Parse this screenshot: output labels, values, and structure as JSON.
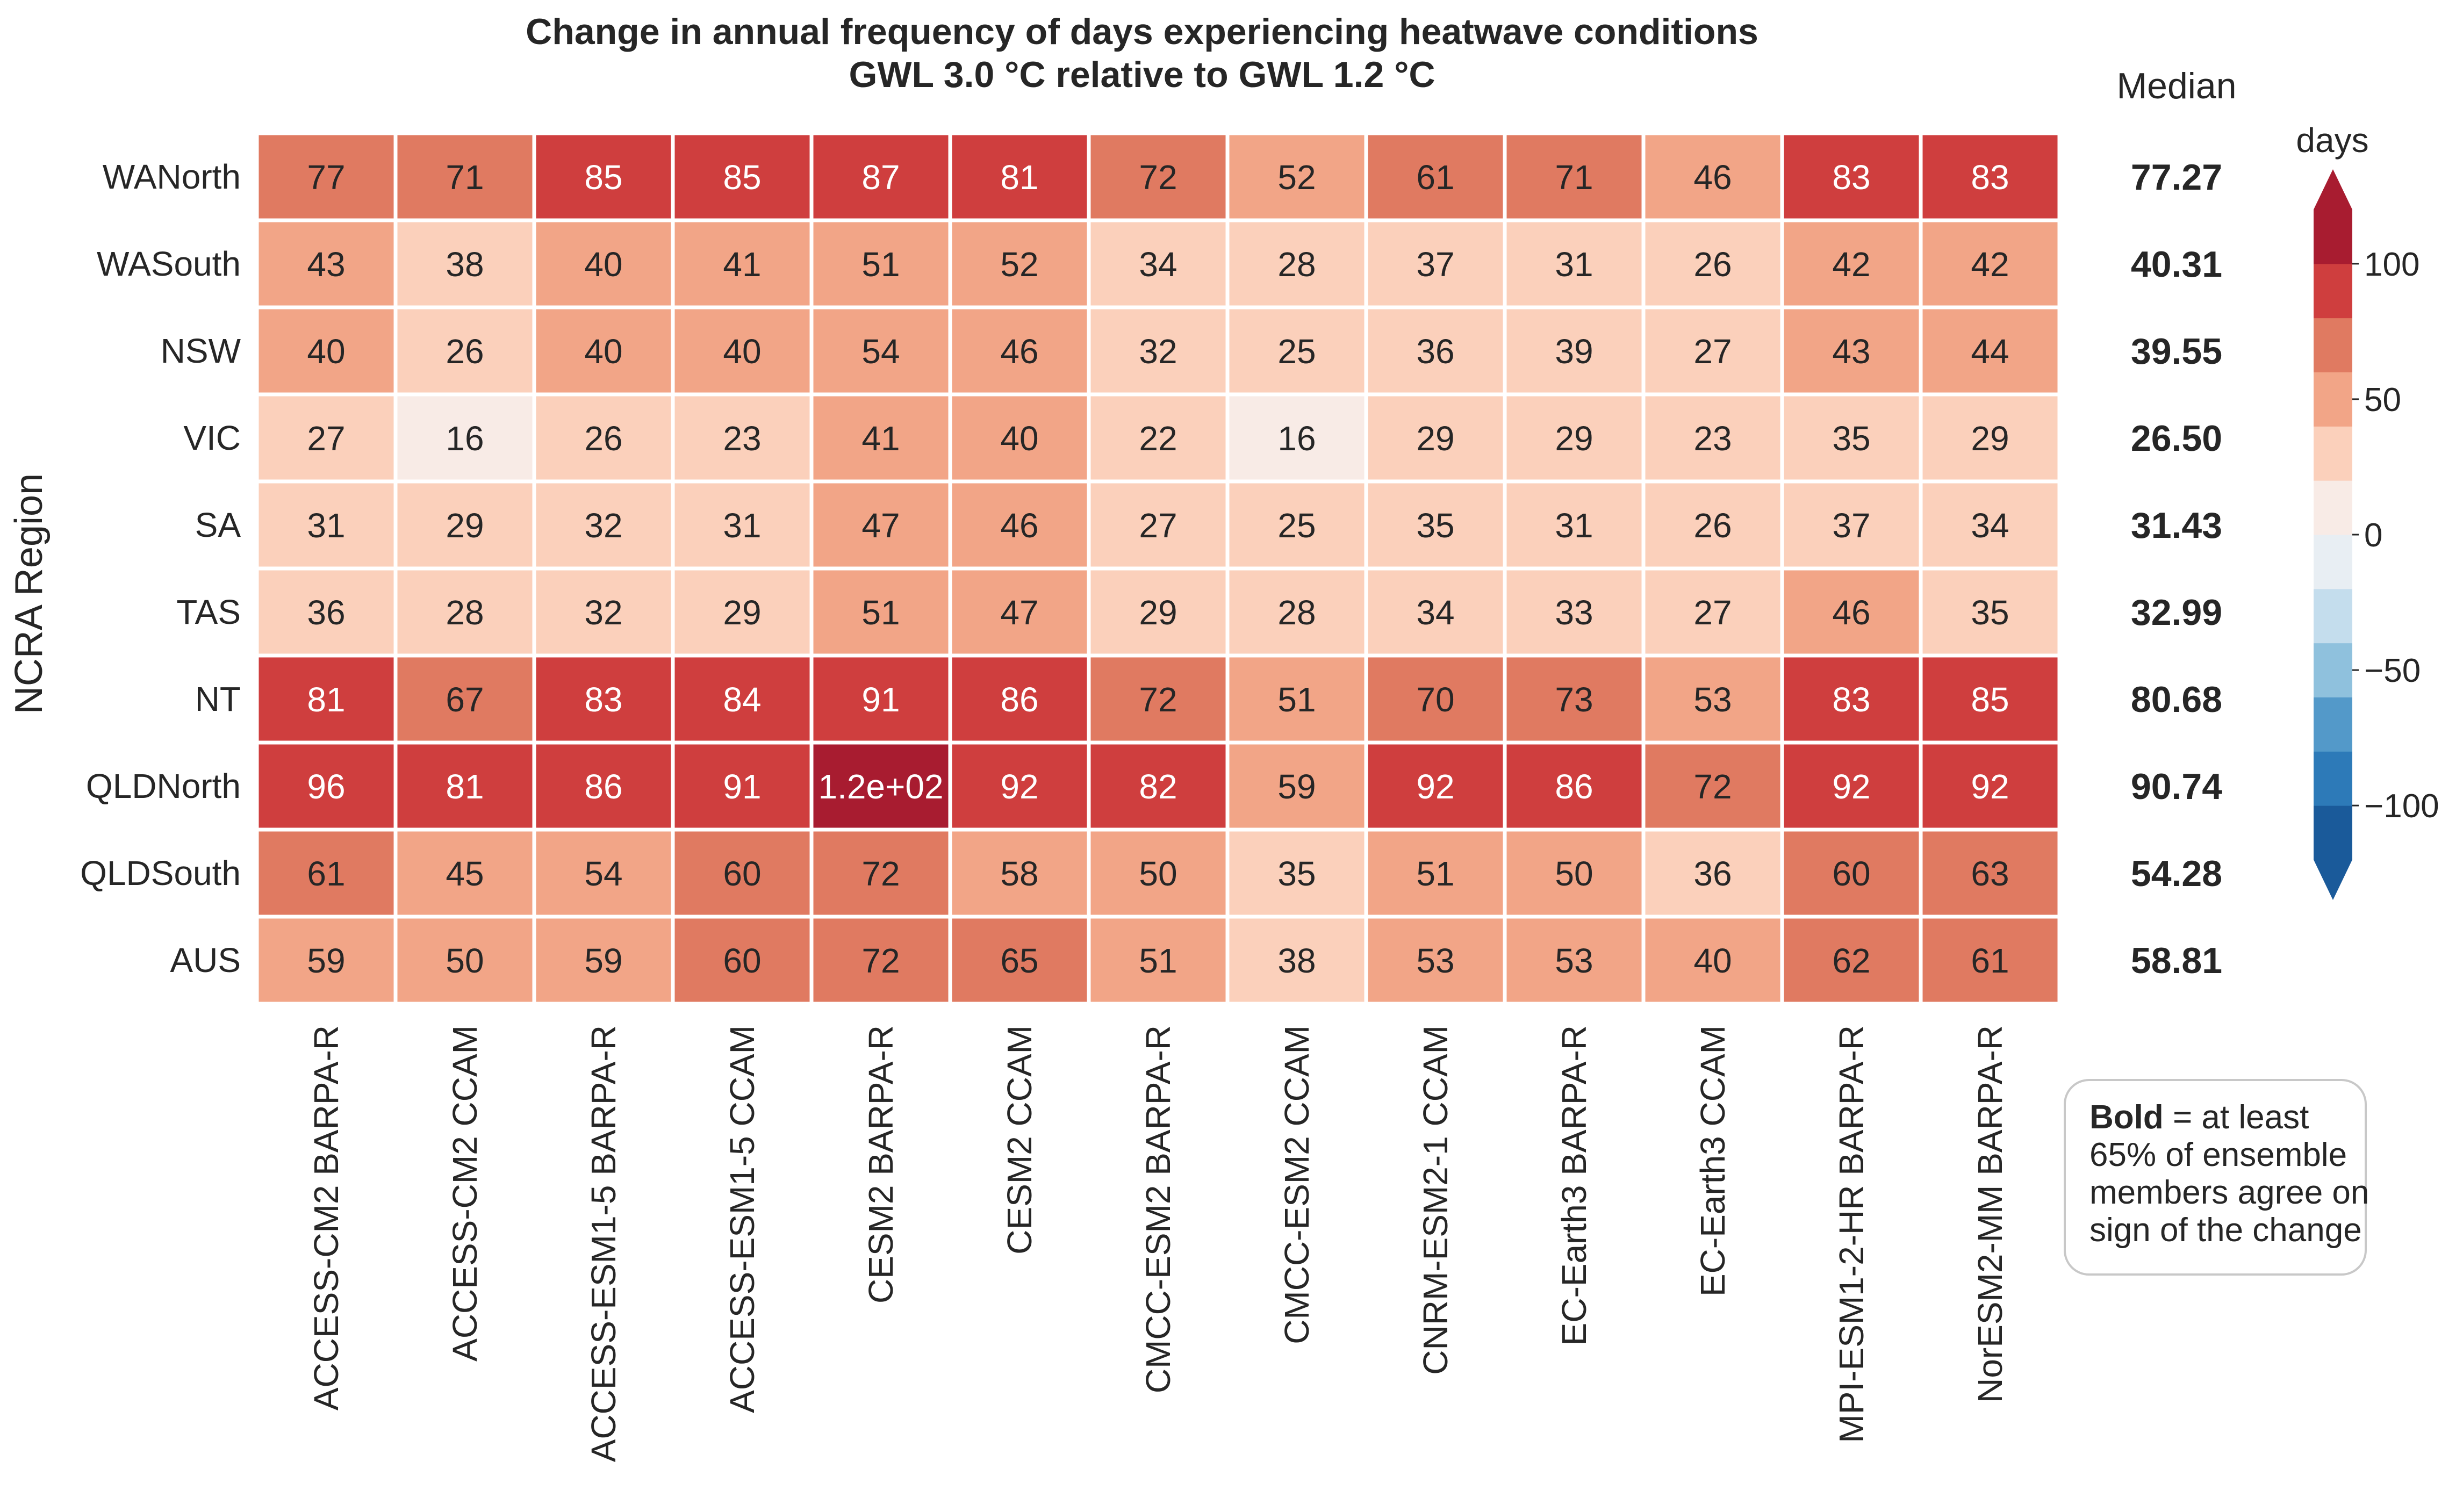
{
  "chart_data": {
    "type": "heatmap",
    "title": "Change in annual frequency of days experiencing heatwave conditions",
    "subtitle": "GWL 3.0 °C relative to GWL 1.2 °C",
    "ylabel": "NCRA Region",
    "rows": [
      "WANorth",
      "WASouth",
      "NSW",
      "VIC",
      "SA",
      "TAS",
      "NT",
      "QLDNorth",
      "QLDSouth",
      "AUS"
    ],
    "columns": [
      "ACCESS-CM2 BARPA-R",
      "ACCESS-CM2 CCAM",
      "ACCESS-ESM1-5 BARPA-R",
      "ACCESS-ESM1-5 CCAM",
      "CESM2 BARPA-R",
      "CESM2 CCAM",
      "CMCC-ESM2 BARPA-R",
      "CMCC-ESM2 CCAM",
      "CNRM-ESM2-1 CCAM",
      "EC-Earth3 BARPA-R",
      "EC-Earth3 CCAM",
      "MPI-ESM1-2-HR BARPA-R",
      "NorESM2-MM BARPA-R"
    ],
    "values": [
      [
        77,
        71,
        85,
        85,
        87,
        81,
        72,
        52,
        61,
        71,
        46,
        83,
        83
      ],
      [
        43,
        38,
        40,
        41,
        51,
        52,
        34,
        28,
        37,
        31,
        26,
        42,
        42
      ],
      [
        40,
        26,
        40,
        40,
        54,
        46,
        32,
        25,
        36,
        39,
        27,
        43,
        44
      ],
      [
        27,
        16,
        26,
        23,
        41,
        40,
        22,
        16,
        29,
        29,
        23,
        35,
        29
      ],
      [
        31,
        29,
        32,
        31,
        47,
        46,
        27,
        25,
        35,
        31,
        26,
        37,
        34
      ],
      [
        36,
        28,
        32,
        29,
        51,
        47,
        29,
        28,
        34,
        33,
        27,
        46,
        35
      ],
      [
        81,
        67,
        83,
        84,
        91,
        86,
        72,
        51,
        70,
        73,
        53,
        83,
        85
      ],
      [
        96,
        81,
        86,
        91,
        120,
        92,
        82,
        59,
        92,
        86,
        72,
        92,
        92
      ],
      [
        61,
        45,
        54,
        60,
        72,
        58,
        50,
        35,
        51,
        50,
        36,
        60,
        63
      ],
      [
        59,
        50,
        59,
        60,
        72,
        65,
        51,
        38,
        53,
        53,
        40,
        62,
        61
      ]
    ],
    "cell_labels": [
      [
        "77",
        "71",
        "85",
        "85",
        "87",
        "81",
        "72",
        "52",
        "61",
        "71",
        "46",
        "83",
        "83"
      ],
      [
        "43",
        "38",
        "40",
        "41",
        "51",
        "52",
        "34",
        "28",
        "37",
        "31",
        "26",
        "42",
        "42"
      ],
      [
        "40",
        "26",
        "40",
        "40",
        "54",
        "46",
        "32",
        "25",
        "36",
        "39",
        "27",
        "43",
        "44"
      ],
      [
        "27",
        "16",
        "26",
        "23",
        "41",
        "40",
        "22",
        "16",
        "29",
        "29",
        "23",
        "35",
        "29"
      ],
      [
        "31",
        "29",
        "32",
        "31",
        "47",
        "46",
        "27",
        "25",
        "35",
        "31",
        "26",
        "37",
        "34"
      ],
      [
        "36",
        "28",
        "32",
        "29",
        "51",
        "47",
        "29",
        "28",
        "34",
        "33",
        "27",
        "46",
        "35"
      ],
      [
        "81",
        "67",
        "83",
        "84",
        "91",
        "86",
        "72",
        "51",
        "70",
        "73",
        "53",
        "83",
        "85"
      ],
      [
        "96",
        "81",
        "86",
        "91",
        "1.2e+02",
        "92",
        "82",
        "59",
        "92",
        "86",
        "72",
        "92",
        "92"
      ],
      [
        "61",
        "45",
        "54",
        "60",
        "72",
        "58",
        "50",
        "35",
        "51",
        "50",
        "36",
        "60",
        "63"
      ],
      [
        "59",
        "50",
        "59",
        "60",
        "72",
        "65",
        "51",
        "38",
        "53",
        "53",
        "40",
        "62",
        "61"
      ]
    ],
    "median_header": "Median",
    "medians": [
      "77.27",
      "40.31",
      "39.55",
      "26.50",
      "31.43",
      "32.99",
      "80.68",
      "90.74",
      "54.28",
      "58.81"
    ],
    "colorbar": {
      "label": "days",
      "boundaries": [
        -120,
        -100,
        -80,
        -60,
        -40,
        -20,
        0,
        20,
        40,
        60,
        80,
        100,
        120
      ],
      "colors": [
        "#1a5a9a",
        "#2d7ab8",
        "#5399c9",
        "#8fc1dd",
        "#c4dded",
        "#e8eef3",
        "#f8ebe6",
        "#fbd0bb",
        "#f2a587",
        "#e07a61",
        "#cf3e3e",
        "#a81c30"
      ],
      "ticks": [
        100,
        50,
        0,
        -50,
        -100
      ],
      "tick_labels": [
        "100",
        "50",
        "0",
        "−50",
        "−100"
      ],
      "extend": "both"
    },
    "note": {
      "bold_word": "Bold",
      "line1_rest": " = at least",
      "line2": "65% of ensemble",
      "line3": "members agree on",
      "line4": "sign of the change"
    }
  }
}
